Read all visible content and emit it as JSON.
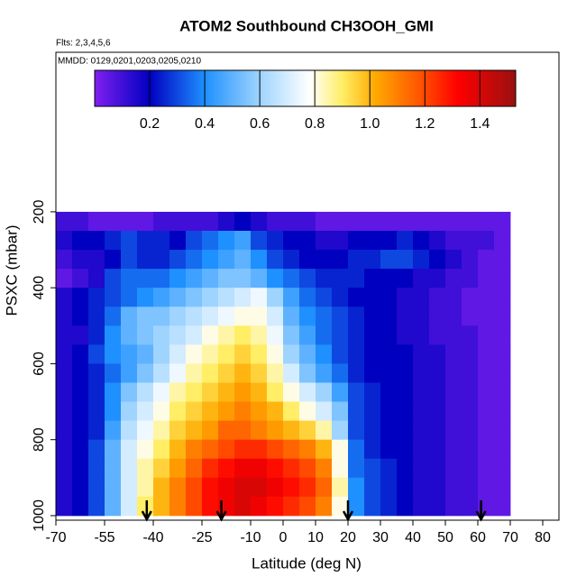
{
  "chart_data": {
    "type": "heatmap",
    "title": "ATOM2 Southbound CH3OOH_GMI",
    "subtitle": "Flts: 2,3,4,5,6",
    "annotation": "MMDD: 0129,0201,0203,0205,0210",
    "x_label": "Latitude (deg N)",
    "y_label": "PSXC (mbar)",
    "xlim": [
      -70,
      85
    ],
    "ylim": [
      1012,
      -220
    ],
    "xticks": [
      -70,
      -55,
      -40,
      -25,
      -10,
      0,
      10,
      20,
      30,
      40,
      50,
      60,
      70,
      80
    ],
    "yticks": [
      200,
      400,
      600,
      800,
      1000
    ],
    "x_edges": [
      -70,
      -65,
      -60,
      -55,
      -50,
      -45,
      -40,
      -35,
      -30,
      -25,
      -20,
      -15,
      -10,
      -5,
      0,
      5,
      10,
      15,
      20,
      25,
      30,
      35,
      40,
      45,
      50,
      55,
      60,
      65,
      70
    ],
    "y_edges": [
      200,
      250,
      300,
      350,
      400,
      450,
      500,
      550,
      600,
      650,
      700,
      750,
      800,
      850,
      900,
      950,
      1000
    ],
    "z": [
      [
        0.1,
        0.1,
        0.05,
        0.05,
        0.05,
        0.05,
        0.1,
        0.1,
        0.1,
        0.1,
        0.15,
        0.2,
        0.15,
        0.1,
        0.1,
        0.1,
        0.05,
        0.05,
        0.05,
        0.05,
        0.05,
        0.05,
        0.05,
        0.05,
        0.05,
        0.05,
        0.05,
        0.05
      ],
      [
        0.15,
        0.2,
        0.2,
        0.25,
        0.3,
        0.25,
        0.25,
        0.2,
        0.3,
        0.35,
        0.4,
        0.45,
        0.3,
        0.25,
        0.2,
        0.2,
        0.15,
        0.15,
        0.2,
        0.2,
        0.2,
        0.25,
        0.2,
        0.15,
        0.1,
        0.1,
        0.1,
        0.05
      ],
      [
        0.1,
        0.15,
        0.15,
        0.2,
        0.3,
        0.25,
        0.25,
        0.3,
        0.35,
        0.4,
        0.45,
        0.5,
        0.4,
        0.3,
        0.25,
        0.2,
        0.2,
        0.2,
        0.25,
        0.25,
        0.3,
        0.3,
        0.25,
        0.2,
        0.15,
        0.1,
        0.05,
        0.05
      ],
      [
        0.05,
        0.1,
        0.15,
        0.3,
        0.35,
        0.35,
        0.35,
        0.4,
        0.45,
        0.5,
        0.55,
        0.55,
        0.5,
        0.4,
        0.35,
        0.3,
        0.25,
        0.25,
        0.25,
        0.2,
        0.2,
        0.2,
        0.15,
        0.15,
        0.1,
        0.1,
        0.05,
        0.05
      ],
      [
        0.15,
        0.2,
        0.25,
        0.3,
        0.35,
        0.4,
        0.45,
        0.5,
        0.55,
        0.6,
        0.65,
        0.7,
        0.75,
        0.6,
        0.45,
        0.35,
        0.3,
        0.25,
        0.2,
        0.2,
        0.2,
        0.15,
        0.15,
        0.1,
        0.1,
        0.05,
        0.05,
        0.05
      ],
      [
        0.15,
        0.2,
        0.25,
        0.35,
        0.5,
        0.55,
        0.55,
        0.6,
        0.65,
        0.7,
        0.75,
        0.8,
        0.8,
        0.7,
        0.5,
        0.4,
        0.35,
        0.3,
        0.25,
        0.2,
        0.2,
        0.15,
        0.15,
        0.1,
        0.1,
        0.05,
        0.05,
        0.05
      ],
      [
        0.15,
        0.15,
        0.25,
        0.4,
        0.5,
        0.55,
        0.6,
        0.65,
        0.7,
        0.8,
        0.85,
        0.9,
        0.85,
        0.75,
        0.55,
        0.45,
        0.35,
        0.3,
        0.25,
        0.2,
        0.2,
        0.15,
        0.15,
        0.1,
        0.1,
        0.1,
        0.05,
        0.05
      ],
      [
        0.15,
        0.2,
        0.3,
        0.4,
        0.45,
        0.5,
        0.6,
        0.7,
        0.8,
        0.85,
        0.9,
        0.95,
        0.9,
        0.8,
        0.6,
        0.5,
        0.4,
        0.3,
        0.25,
        0.2,
        0.2,
        0.2,
        0.15,
        0.15,
        0.1,
        0.1,
        0.05,
        0.05
      ],
      [
        0.15,
        0.2,
        0.25,
        0.35,
        0.45,
        0.55,
        0.65,
        0.75,
        0.85,
        0.9,
        0.95,
        1.0,
        0.95,
        0.85,
        0.7,
        0.55,
        0.45,
        0.35,
        0.25,
        0.2,
        0.2,
        0.2,
        0.15,
        0.15,
        0.1,
        0.1,
        0.05,
        0.05
      ],
      [
        0.15,
        0.2,
        0.25,
        0.4,
        0.55,
        0.65,
        0.75,
        0.85,
        0.9,
        0.95,
        1.0,
        1.05,
        1.0,
        0.9,
        0.8,
        0.7,
        0.6,
        0.45,
        0.3,
        0.25,
        0.2,
        0.2,
        0.15,
        0.15,
        0.1,
        0.1,
        0.05,
        0.05
      ],
      [
        0.15,
        0.2,
        0.25,
        0.4,
        0.6,
        0.7,
        0.8,
        0.9,
        0.95,
        1.0,
        1.05,
        1.1,
        1.05,
        1.0,
        0.9,
        0.8,
        0.7,
        0.55,
        0.3,
        0.25,
        0.2,
        0.2,
        0.15,
        0.15,
        0.1,
        0.1,
        0.05,
        0.05
      ],
      [
        0.15,
        0.2,
        0.25,
        0.45,
        0.65,
        0.75,
        0.85,
        0.95,
        1.0,
        1.05,
        1.15,
        1.15,
        1.1,
        1.05,
        1.0,
        0.95,
        0.85,
        0.6,
        0.3,
        0.25,
        0.2,
        0.2,
        0.15,
        0.15,
        0.1,
        0.1,
        0.05,
        0.05
      ],
      [
        0.15,
        0.2,
        0.3,
        0.5,
        0.7,
        0.8,
        0.9,
        1.0,
        1.1,
        1.15,
        1.2,
        1.25,
        1.25,
        1.2,
        1.15,
        1.1,
        1.0,
        0.8,
        0.35,
        0.25,
        0.2,
        0.2,
        0.15,
        0.15,
        0.1,
        0.1,
        0.05,
        0.05
      ],
      [
        0.15,
        0.2,
        0.3,
        0.5,
        0.7,
        0.85,
        0.95,
        1.05,
        1.15,
        1.25,
        1.3,
        1.35,
        1.35,
        1.3,
        1.25,
        1.2,
        1.1,
        0.8,
        0.35,
        0.3,
        0.25,
        0.2,
        0.15,
        0.15,
        0.1,
        0.1,
        0.05,
        0.05
      ],
      [
        0.15,
        0.2,
        0.3,
        0.5,
        0.7,
        0.85,
        1.0,
        1.1,
        1.2,
        1.3,
        1.35,
        1.4,
        1.4,
        1.35,
        1.3,
        1.25,
        1.15,
        0.85,
        0.4,
        0.3,
        0.25,
        0.2,
        0.15,
        0.15,
        0.1,
        0.1,
        0.05,
        0.05
      ],
      [
        0.15,
        0.2,
        0.3,
        0.5,
        0.7,
        0.9,
        1.0,
        1.1,
        1.2,
        1.3,
        1.35,
        1.4,
        1.35,
        1.3,
        1.25,
        1.2,
        1.1,
        0.8,
        0.4,
        0.3,
        0.25,
        0.2,
        0.15,
        0.15,
        0.1,
        0.1,
        0.05,
        0.05
      ]
    ],
    "clim": [
      0,
      1.53
    ],
    "colorscale": [
      {
        "value": 0,
        "color": "#8020f0"
      },
      {
        "value": 0.2,
        "color": "#0000c0"
      },
      {
        "value": 0.4,
        "color": "#1e90ff"
      },
      {
        "value": 0.6,
        "color": "#9fd4ff"
      },
      {
        "value": 0.78,
        "color": "#ffffff"
      },
      {
        "value": 0.9,
        "color": "#ffee66"
      },
      {
        "value": 1.02,
        "color": "#ffaa00"
      },
      {
        "value": 1.2,
        "color": "#ff4a00"
      },
      {
        "value": 1.32,
        "color": "#ff0000"
      },
      {
        "value": 1.53,
        "color": "#9a1010"
      }
    ],
    "colorbar_ticks": [
      0.2,
      0.4,
      0.6,
      0.8,
      {
        "value": 1,
        "label": "1.0"
      },
      1.2,
      1.4
    ],
    "arrows_x": [
      -42,
      -19,
      20,
      61
    ]
  }
}
